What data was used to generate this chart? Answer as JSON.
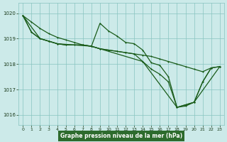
{
  "xlabel": "Graphe pression niveau de la mer (hPa)",
  "xlim": [
    -0.5,
    23.5
  ],
  "ylim": [
    1015.6,
    1020.4
  ],
  "yticks": [
    1016,
    1017,
    1018,
    1019,
    1020
  ],
  "xticks": [
    0,
    1,
    2,
    3,
    4,
    5,
    6,
    7,
    8,
    9,
    10,
    11,
    12,
    13,
    14,
    15,
    16,
    17,
    18,
    19,
    20,
    21,
    22,
    23
  ],
  "bg_color": "#cceae9",
  "line_color": "#1a5c1a",
  "grid_color": "#88c4c0",
  "line1_x": [
    0,
    1,
    2,
    3,
    4,
    5,
    6,
    7,
    8,
    9,
    10,
    11,
    12,
    13,
    14,
    15,
    16,
    17,
    18,
    19,
    20,
    21,
    22,
    23
  ],
  "line1_y": [
    1019.9,
    1019.65,
    1019.4,
    1019.2,
    1019.05,
    1018.95,
    1018.85,
    1018.75,
    1018.7,
    1018.6,
    1018.55,
    1018.5,
    1018.45,
    1018.4,
    1018.35,
    1018.3,
    1018.2,
    1018.1,
    1018.0,
    1017.9,
    1017.8,
    1017.7,
    1017.85,
    1017.9
  ],
  "line2_x": [
    0,
    1,
    2,
    3,
    4,
    5,
    6,
    7,
    8,
    9,
    10,
    11,
    12,
    13,
    14,
    15,
    16,
    17,
    18,
    19,
    20,
    21,
    22
  ],
  "line2_y": [
    1019.9,
    1019.25,
    1019.0,
    1018.9,
    1018.8,
    1018.75,
    1018.75,
    1018.75,
    1018.7,
    1019.6,
    1019.3,
    1019.1,
    1018.85,
    1018.8,
    1018.55,
    1018.05,
    1017.95,
    1017.5,
    1016.3,
    1016.4,
    1016.5,
    1017.3,
    1017.85
  ],
  "line3_x": [
    0,
    1,
    2,
    3,
    4,
    5,
    6,
    7,
    8,
    9,
    10,
    11,
    12,
    13,
    14,
    15,
    16,
    17,
    18,
    19,
    20,
    21,
    22,
    23
  ],
  "line3_y": [
    1019.9,
    1019.25,
    1019.0,
    1018.9,
    1018.8,
    1018.75,
    1018.75,
    1018.75,
    1018.7,
    1018.6,
    1018.55,
    1018.5,
    1018.45,
    1018.4,
    1018.1,
    1017.8,
    1017.6,
    1017.3,
    1016.3,
    1016.4,
    1016.5,
    1017.3,
    1017.85,
    1017.9
  ],
  "line4_x": [
    0,
    2,
    3,
    4,
    8,
    14,
    18,
    19,
    20,
    23
  ],
  "line4_y": [
    1019.9,
    1019.0,
    1018.9,
    1018.8,
    1018.7,
    1018.1,
    1016.3,
    1016.35,
    1016.5,
    1017.9
  ]
}
